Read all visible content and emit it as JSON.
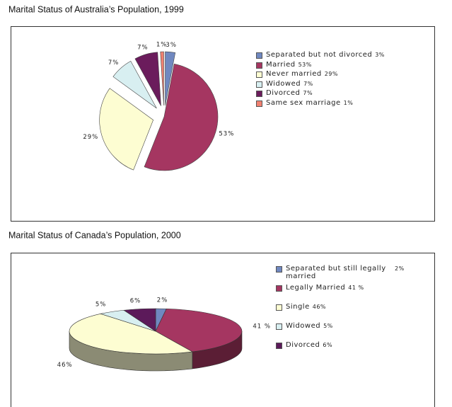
{
  "chart_data": [
    {
      "type": "pie",
      "title": "Marital Status of Australia’s Population, 1999",
      "categories": [
        "Separated but not divorced",
        "Married",
        "Never married",
        "Widowed",
        "Divorced",
        "Same sex marriage"
      ],
      "values": [
        3,
        53,
        29,
        7,
        7,
        1
      ],
      "value_labels": [
        "3%",
        "53%",
        "29%",
        "7%",
        "7%",
        "1%"
      ],
      "colors": [
        "#7088c0",
        "#a53661",
        "#fdfdd2",
        "#d8eff1",
        "#6b1c5c",
        "#f08070"
      ],
      "3d": false
    },
    {
      "type": "pie",
      "title": "Marital Status of Canada’s Population, 2000",
      "categories": [
        "Separated but still legally married",
        "Legally Married",
        "Single",
        "Widowed",
        "Divorced"
      ],
      "values": [
        2,
        41,
        46,
        5,
        6
      ],
      "value_labels": [
        "2%",
        "41 %",
        "46%",
        "5%",
        "6%"
      ],
      "colors": [
        "#7088c0",
        "#a53661",
        "#fdfdd2",
        "#d8eff1",
        "#5c1a5a"
      ],
      "3d": true
    }
  ]
}
